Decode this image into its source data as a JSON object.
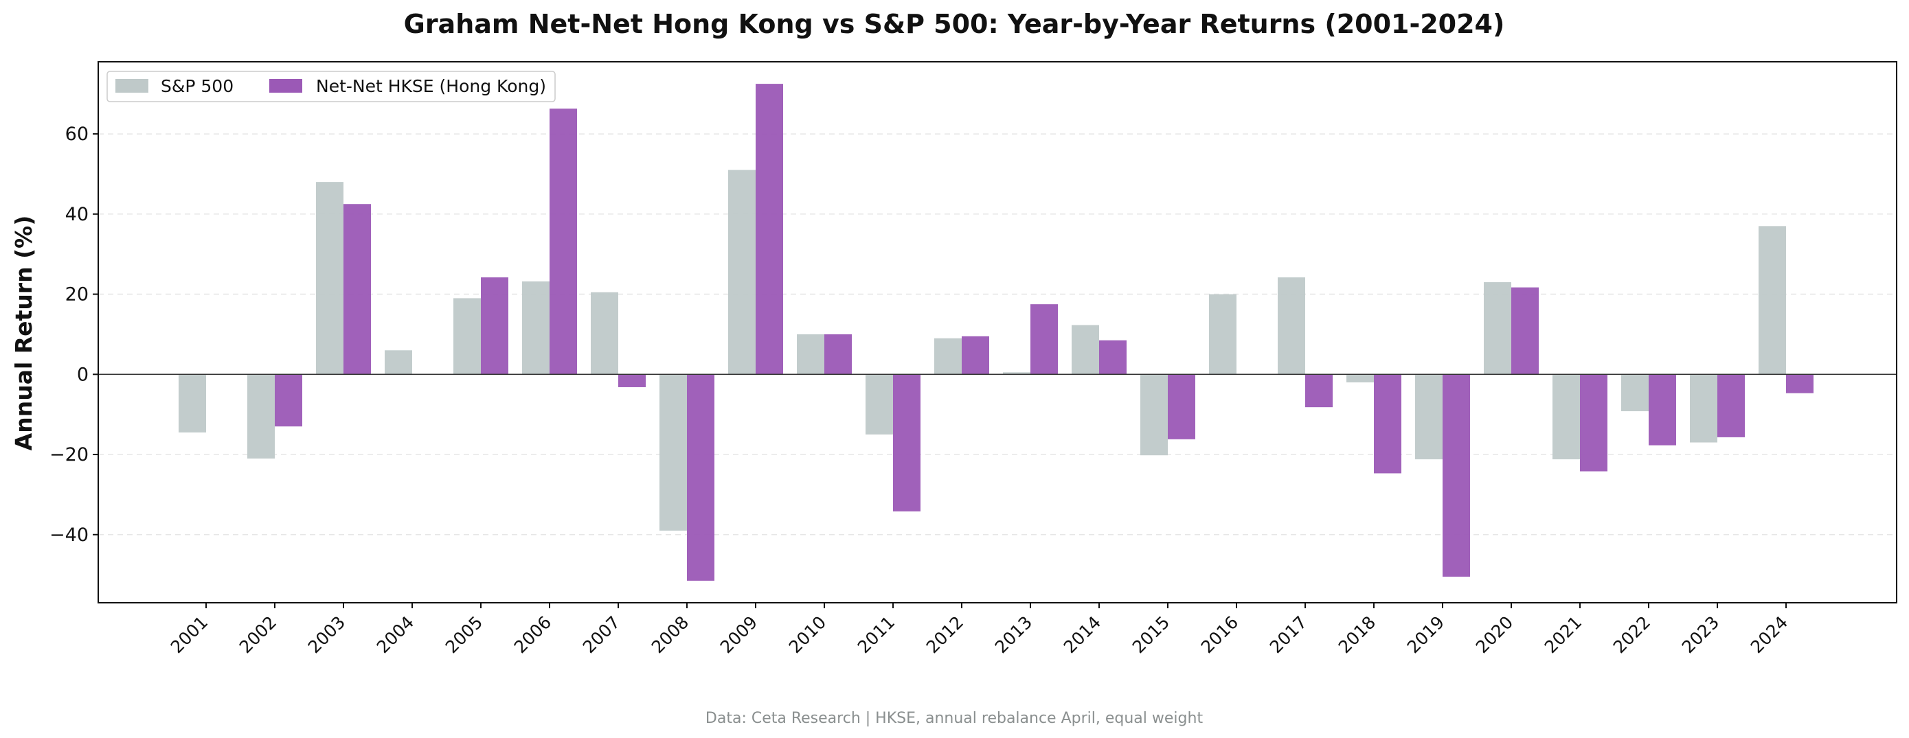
{
  "chart_data": {
    "type": "bar",
    "title": "Graham Net-Net Hong Kong vs S&P 500: Year-by-Year Returns (2001-2024)",
    "ylabel": "Annual Return (%)",
    "xlabel": "",
    "ylim": [
      -57,
      78
    ],
    "yticks": [
      -40,
      -20,
      0,
      20,
      40,
      60
    ],
    "ytick_labels": [
      "−40",
      "−20",
      "0",
      "20",
      "40",
      "60"
    ],
    "grid": "y dashed",
    "legend_position": "top-left",
    "categories": [
      "2001",
      "2002",
      "2003",
      "2004",
      "2005",
      "2006",
      "2007",
      "2008",
      "2009",
      "2010",
      "2011",
      "2012",
      "2013",
      "2014",
      "2015",
      "2016",
      "2017",
      "2018",
      "2019",
      "2020",
      "2021",
      "2022",
      "2023",
      "2024"
    ],
    "series": [
      {
        "name": "S&P 500",
        "color": "#bfc9c9",
        "values": [
          -14.5,
          -21.0,
          48.0,
          6.0,
          19.0,
          23.2,
          20.5,
          -39.0,
          51.0,
          10.0,
          -15.0,
          9.0,
          0.5,
          12.3,
          -20.2,
          20.0,
          24.2,
          -2.0,
          -21.2,
          23.0,
          -21.2,
          -9.2,
          -17.0,
          37.0
        ]
      },
      {
        "name": "Net-Net HKSE (Hong Kong)",
        "color": "#9b59b6",
        "values": [
          0,
          -13.0,
          42.5,
          0,
          24.2,
          66.3,
          -3.2,
          -51.5,
          72.5,
          10.0,
          -34.2,
          9.5,
          17.5,
          8.5,
          -16.2,
          0,
          -8.2,
          -24.7,
          -50.5,
          21.7,
          -24.2,
          -17.7,
          -15.7,
          -4.7
        ]
      }
    ],
    "footnote": "Data: Ceta Research | HKSE, annual rebalance April, equal weight"
  }
}
